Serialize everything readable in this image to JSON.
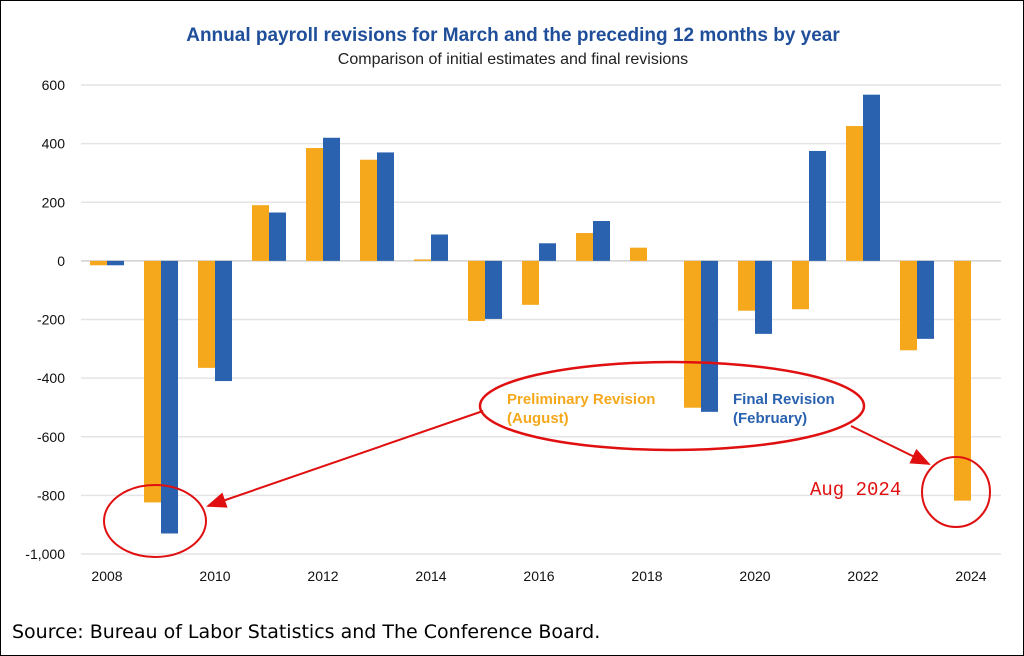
{
  "chart_data": {
    "type": "bar",
    "title": "Annual payroll revisions for March and the preceding 12 months by year",
    "subtitle": "Comparison of initial estimates and final revisions",
    "xlabel": "",
    "ylabel": "",
    "ylim": [
      -1000,
      600
    ],
    "yticks": [
      600,
      400,
      200,
      0,
      -200,
      -400,
      -600,
      -800,
      -1000
    ],
    "ytick_labels": [
      "600",
      "400",
      "200",
      "0",
      "-200",
      "-400",
      "-600",
      "-800",
      "-1,000"
    ],
    "grid": true,
    "categories": [
      "2008",
      "2009",
      "2010",
      "2011",
      "2012",
      "2013",
      "2014",
      "2015",
      "2016",
      "2017",
      "2018",
      "2019",
      "2020",
      "2021",
      "2022",
      "2023",
      "2024"
    ],
    "xtick_labels": [
      "2008",
      "2010",
      "2012",
      "2014",
      "2016",
      "2018",
      "2020",
      "2022",
      "2024"
    ],
    "series": [
      {
        "name": "Preliminary Revision (August)",
        "color": "#f5a81c",
        "values": [
          -15,
          -824,
          -365,
          190,
          385,
          345,
          5,
          -205,
          -150,
          95,
          45,
          -501,
          -170,
          -165,
          460,
          -305,
          -818
        ]
      },
      {
        "name": "Final Revision (February)",
        "color": "#2a62b0",
        "values": [
          -15,
          -930,
          -410,
          165,
          420,
          370,
          90,
          -198,
          60,
          136,
          0,
          -515,
          -249,
          375,
          567,
          -266,
          null
        ]
      }
    ],
    "legend": {
      "placement": "bottom-center, inside annotation ellipse",
      "prelim_line1": "Preliminary Revision",
      "prelim_line2": "(August)",
      "final_line1": "Final Revision",
      "final_line2": "(February)"
    },
    "annotations": {
      "aug_label": "Aug 2024"
    }
  },
  "source": "Source: Bureau of Labor Statistics and The Conference Board."
}
